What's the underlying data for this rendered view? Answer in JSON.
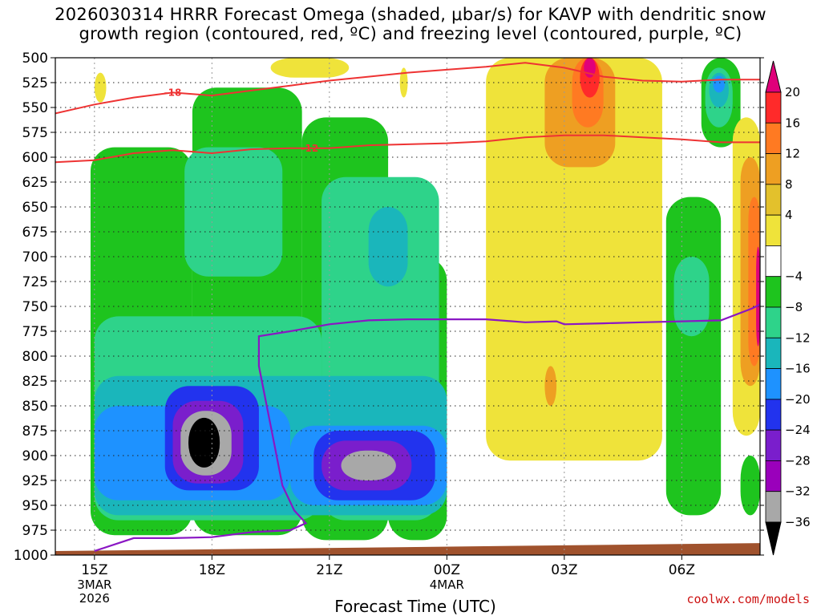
{
  "chart_data": {
    "type": "heatmap",
    "title_line1": "2026030314 HRRR Forecast Omega (shaded, μbar/s) for KAVP with dendritic snow",
    "title_line2": "growth region (contoured, red, ºC) and freezing level (contoured, purple, ºC)",
    "xlabel": "Forecast Time (UTC)",
    "ylabel": "",
    "x_ticks": [
      {
        "hour": 15,
        "label": "15Z",
        "sub1": "3MAR",
        "sub2": "2026"
      },
      {
        "hour": 18,
        "label": "18Z",
        "sub1": "",
        "sub2": ""
      },
      {
        "hour": 21,
        "label": "21Z",
        "sub1": "",
        "sub2": ""
      },
      {
        "hour": 24,
        "label": "00Z",
        "sub1": "4MAR",
        "sub2": ""
      },
      {
        "hour": 27,
        "label": "03Z",
        "sub1": "",
        "sub2": ""
      },
      {
        "hour": 30,
        "label": "06Z",
        "sub1": "",
        "sub2": ""
      }
    ],
    "xlim": [
      14.0,
      32.0
    ],
    "y_ticks": [
      500,
      525,
      550,
      575,
      600,
      625,
      650,
      675,
      700,
      725,
      750,
      775,
      800,
      825,
      850,
      875,
      900,
      925,
      950,
      975,
      1000
    ],
    "ylim": [
      500,
      1000
    ],
    "y_axis_inverted": true,
    "colorbar": {
      "labels": [
        "20",
        "16",
        "12",
        "8",
        "4",
        "−4",
        "−8",
        "−12",
        "−16",
        "−20",
        "−24",
        "−28",
        "−32",
        "−36"
      ],
      "colors": [
        "#e0007a",
        "#ff2a2a",
        "#ff7a22",
        "#ee9f22",
        "#e3c12c",
        "#efe33a",
        "#ffffff",
        "#1ec41e",
        "#2ed38a",
        "#1ab6bb",
        "#1e92ff",
        "#2233ee",
        "#7a1ecc",
        "#9a00bb",
        "#a8a8a8",
        "#000000"
      ]
    },
    "omega_cells": [
      {
        "x0": 14.9,
        "x1": 17.5,
        "p0": 590,
        "p1": 980,
        "v": -8
      },
      {
        "x0": 17.5,
        "x1": 20.3,
        "p0": 530,
        "p1": 980,
        "v": -8
      },
      {
        "x0": 20.3,
        "x1": 22.5,
        "p0": 560,
        "p1": 985,
        "v": -8
      },
      {
        "x0": 22.5,
        "x1": 24.0,
        "p0": 700,
        "p1": 985,
        "v": -8
      },
      {
        "x0": 17.3,
        "x1": 19.8,
        "p0": 590,
        "p1": 720,
        "v": -12
      },
      {
        "x0": 15.0,
        "x1": 20.8,
        "p0": 760,
        "p1": 965,
        "v": -12
      },
      {
        "x0": 20.8,
        "x1": 23.8,
        "p0": 620,
        "p1": 965,
        "v": -12
      },
      {
        "x0": 15.0,
        "x1": 24.0,
        "p0": 820,
        "p1": 960,
        "v": -16
      },
      {
        "x0": 22.0,
        "x1": 23.0,
        "p0": 650,
        "p1": 730,
        "v": -16
      },
      {
        "x0": 15.0,
        "x1": 20.0,
        "p0": 850,
        "p1": 945,
        "v": -20
      },
      {
        "x0": 20.0,
        "x1": 24.0,
        "p0": 870,
        "p1": 950,
        "v": -20
      },
      {
        "x0": 16.8,
        "x1": 19.2,
        "p0": 830,
        "p1": 935,
        "v": -24
      },
      {
        "x0": 20.6,
        "x1": 23.7,
        "p0": 875,
        "p1": 945,
        "v": -24
      },
      {
        "x0": 17.0,
        "x1": 18.8,
        "p0": 845,
        "p1": 928,
        "v": -28
      },
      {
        "x0": 20.8,
        "x1": 23.1,
        "p0": 885,
        "p1": 935,
        "v": -28
      },
      {
        "x0": 17.2,
        "x1": 18.5,
        "p0": 855,
        "p1": 920,
        "v": -32
      },
      {
        "x0": 21.3,
        "x1": 22.7,
        "p0": 895,
        "p1": 925,
        "v": -32
      },
      {
        "x0": 17.4,
        "x1": 18.2,
        "p0": 862,
        "p1": 912,
        "v": -36
      },
      {
        "x0": 25.0,
        "x1": 29.5,
        "p0": 500,
        "p1": 905,
        "v": 4
      },
      {
        "x0": 26.5,
        "x1": 28.3,
        "p0": 500,
        "p1": 610,
        "v": 8
      },
      {
        "x0": 27.2,
        "x1": 28.0,
        "p0": 500,
        "p1": 570,
        "v": 12
      },
      {
        "x0": 27.4,
        "x1": 27.9,
        "p0": 500,
        "p1": 540,
        "v": 16
      },
      {
        "x0": 27.5,
        "x1": 27.8,
        "p0": 500,
        "p1": 520,
        "v": 20
      },
      {
        "x0": 26.3,
        "x1": 26.9,
        "p0": 790,
        "p1": 880,
        "v": 4
      },
      {
        "x0": 26.5,
        "x1": 26.8,
        "p0": 810,
        "p1": 850,
        "v": 8
      },
      {
        "x0": 29.6,
        "x1": 31.0,
        "p0": 640,
        "p1": 960,
        "v": -8
      },
      {
        "x0": 29.8,
        "x1": 30.7,
        "p0": 700,
        "p1": 780,
        "v": -12
      },
      {
        "x0": 30.5,
        "x1": 31.5,
        "p0": 500,
        "p1": 590,
        "v": -8
      },
      {
        "x0": 30.6,
        "x1": 31.3,
        "p0": 510,
        "p1": 570,
        "v": -12
      },
      {
        "x0": 30.7,
        "x1": 31.2,
        "p0": 515,
        "p1": 550,
        "v": -16
      },
      {
        "x0": 30.8,
        "x1": 31.1,
        "p0": 518,
        "p1": 535,
        "v": -20
      },
      {
        "x0": 31.3,
        "x1": 32.0,
        "p0": 560,
        "p1": 880,
        "v": 4
      },
      {
        "x0": 31.5,
        "x1": 32.0,
        "p0": 600,
        "p1": 830,
        "v": 8
      },
      {
        "x0": 31.7,
        "x1": 32.0,
        "p0": 640,
        "p1": 810,
        "v": 12
      },
      {
        "x0": 31.9,
        "x1": 32.0,
        "p0": 690,
        "p1": 790,
        "v": 20
      },
      {
        "x0": 31.5,
        "x1": 32.0,
        "p0": 900,
        "p1": 960,
        "v": -8
      },
      {
        "x0": 15.0,
        "x1": 15.3,
        "p0": 515,
        "p1": 545,
        "v": 4
      },
      {
        "x0": 19.5,
        "x1": 21.5,
        "p0": 500,
        "p1": 520,
        "v": 4
      },
      {
        "x0": 22.8,
        "x1": 23.0,
        "p0": 510,
        "p1": 540,
        "v": 4
      }
    ],
    "dgz_contours": [
      {
        "label": "-18",
        "label_at": 17.0,
        "points": [
          [
            14.0,
            556
          ],
          [
            15.0,
            547
          ],
          [
            16.0,
            540
          ],
          [
            17.0,
            535
          ],
          [
            18.0,
            538
          ],
          [
            19.0,
            533
          ],
          [
            20.0,
            528
          ],
          [
            21.0,
            523
          ],
          [
            22.0,
            519
          ],
          [
            23.0,
            515
          ],
          [
            24.0,
            512
          ],
          [
            25.0,
            509
          ],
          [
            26.0,
            505
          ],
          [
            27.0,
            510
          ],
          [
            28.0,
            519
          ],
          [
            29.0,
            523
          ],
          [
            30.0,
            524
          ],
          [
            31.0,
            522
          ],
          [
            32.0,
            522
          ]
        ]
      },
      {
        "label": "-12",
        "label_at": 20.5,
        "points": [
          [
            14.0,
            605
          ],
          [
            15.0,
            603
          ],
          [
            16.0,
            596
          ],
          [
            17.0,
            593
          ],
          [
            18.0,
            596
          ],
          [
            19.0,
            592
          ],
          [
            20.0,
            591
          ],
          [
            21.0,
            591
          ],
          [
            22.0,
            588
          ],
          [
            23.0,
            587
          ],
          [
            24.0,
            586
          ],
          [
            25.0,
            584
          ],
          [
            26.0,
            580
          ],
          [
            27.0,
            578
          ],
          [
            28.0,
            578
          ],
          [
            29.0,
            580
          ],
          [
            30.0,
            582
          ],
          [
            31.0,
            585
          ],
          [
            32.0,
            585
          ]
        ]
      }
    ],
    "freezing_level": [
      [
        15.0,
        996
      ],
      [
        16.0,
        983
      ],
      [
        17.0,
        983
      ],
      [
        18.0,
        982
      ],
      [
        19.0,
        977
      ],
      [
        20.0,
        975
      ],
      [
        20.4,
        968
      ],
      [
        20.1,
        955
      ],
      [
        19.8,
        930
      ],
      [
        19.6,
        890
      ],
      [
        19.4,
        850
      ],
      [
        19.2,
        810
      ],
      [
        19.2,
        780
      ],
      [
        20.0,
        775
      ],
      [
        21.0,
        768
      ],
      [
        22.0,
        764
      ],
      [
        23.0,
        763
      ],
      [
        24.0,
        763
      ],
      [
        25.0,
        763
      ],
      [
        26.0,
        766
      ],
      [
        26.8,
        765
      ],
      [
        27.0,
        768
      ],
      [
        28.0,
        767
      ],
      [
        29.0,
        766
      ],
      [
        30.0,
        765
      ],
      [
        31.0,
        764
      ],
      [
        31.8,
        752
      ],
      [
        32.0,
        748
      ]
    ],
    "surface": {
      "pressure_left": 996,
      "pressure_right": 988,
      "color": "#a0522d"
    }
  },
  "credit": "coolwx.com/models"
}
